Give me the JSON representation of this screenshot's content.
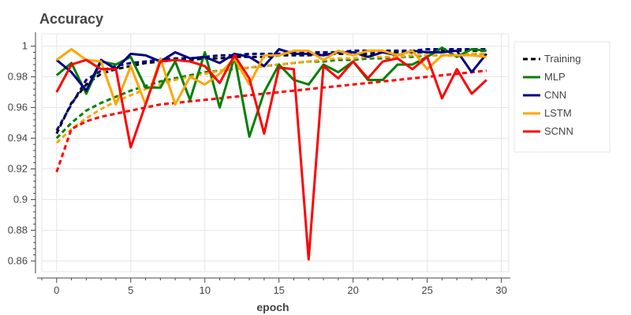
{
  "chart_data": {
    "type": "line",
    "title": "Accuracy",
    "xlabel": "epoch",
    "ylabel": "",
    "xlim": [
      -1,
      30.5
    ],
    "ylim": [
      0.853,
      1.008
    ],
    "x_ticks": [
      0,
      5,
      10,
      15,
      20,
      25,
      30
    ],
    "y_ticks": [
      0.86,
      0.88,
      0.9,
      0.92,
      0.94,
      0.96,
      0.98,
      1
    ],
    "y_tick_labels": [
      "0.86",
      "0.88",
      "0.9",
      "0.92",
      "0.94",
      "0.96",
      "0.98",
      "1"
    ],
    "grid": true,
    "legend_position": "right",
    "legend": [
      {
        "label": "Training",
        "color": "#000000",
        "dash": true
      },
      {
        "label": "MLP",
        "color": "#008000",
        "dash": false
      },
      {
        "label": "CNN",
        "color": "#000080",
        "dash": false
      },
      {
        "label": "LSTM",
        "color": "#ffa500",
        "dash": false
      },
      {
        "label": "SCNN",
        "color": "#ff0000",
        "dash": false
      }
    ],
    "x": [
      0,
      1,
      2,
      3,
      4,
      5,
      6,
      7,
      8,
      9,
      10,
      11,
      12,
      13,
      14,
      15,
      16,
      17,
      18,
      19,
      20,
      21,
      22,
      23,
      24,
      25,
      26,
      27,
      28,
      29
    ],
    "series": [
      {
        "name": "MLP",
        "style": "solid",
        "color": "#008000",
        "values": [
          0.981,
          0.989,
          0.969,
          0.99,
          0.988,
          0.993,
          0.973,
          0.973,
          0.99,
          0.965,
          0.996,
          0.96,
          0.993,
          0.941,
          0.97,
          0.988,
          0.978,
          0.975,
          0.988,
          0.983,
          0.99,
          0.978,
          0.978,
          0.988,
          0.988,
          0.993,
          0.999,
          0.993,
          0.998,
          0.997
        ]
      },
      {
        "name": "CNN",
        "style": "solid",
        "color": "#000080",
        "values": [
          0.991,
          0.983,
          0.971,
          0.991,
          0.985,
          0.995,
          0.994,
          0.99,
          0.996,
          0.992,
          0.993,
          0.989,
          0.995,
          0.993,
          0.987,
          0.998,
          0.995,
          0.995,
          0.994,
          0.996,
          0.996,
          0.993,
          0.996,
          0.994,
          0.997,
          0.996,
          0.996,
          0.997,
          0.983,
          0.995
        ]
      },
      {
        "name": "LSTM",
        "style": "solid",
        "color": "#ffa500",
        "values": [
          0.991,
          0.998,
          0.991,
          0.99,
          0.962,
          0.987,
          0.962,
          0.992,
          0.962,
          0.98,
          0.975,
          0.982,
          0.992,
          0.975,
          0.994,
          0.994,
          0.997,
          0.997,
          0.991,
          0.997,
          0.994,
          0.997,
          0.997,
          0.994,
          0.997,
          0.985,
          0.994,
          0.994,
          0.994,
          0.993
        ]
      },
      {
        "name": "SCNN",
        "style": "solid",
        "color": "#ff0000",
        "values": [
          0.97,
          0.988,
          0.991,
          0.985,
          0.985,
          0.934,
          0.962,
          0.99,
          0.991,
          0.99,
          0.987,
          0.976,
          0.994,
          0.979,
          0.943,
          0.986,
          0.985,
          0.861,
          0.987,
          0.979,
          0.99,
          0.979,
          0.99,
          0.992,
          0.985,
          0.993,
          0.966,
          0.985,
          0.969,
          0.978
        ]
      },
      {
        "name": "",
        "style": "dashed",
        "color": "#000000",
        "values": [
          0.943,
          0.963,
          0.975,
          0.982,
          0.985,
          0.987,
          0.989,
          0.99,
          0.991,
          0.991,
          0.992,
          0.992,
          0.993,
          0.993,
          0.993,
          0.994,
          0.994,
          0.994,
          0.995,
          0.995,
          0.995,
          0.995,
          0.996,
          0.996,
          0.996,
          0.996,
          0.997,
          0.997,
          0.997,
          0.997
        ]
      },
      {
        "name": "",
        "style": "dashed",
        "color": "#000080",
        "values": [
          0.945,
          0.962,
          0.978,
          0.984,
          0.987,
          0.989,
          0.99,
          0.991,
          0.992,
          0.992,
          0.993,
          0.994,
          0.994,
          0.995,
          0.995,
          0.995,
          0.996,
          0.996,
          0.996,
          0.996,
          0.997,
          0.997,
          0.997,
          0.997,
          0.997,
          0.998,
          0.998,
          0.998,
          0.998,
          0.998
        ]
      },
      {
        "name": "",
        "style": "dashed",
        "color": "#008000",
        "values": [
          0.94,
          0.95,
          0.958,
          0.963,
          0.967,
          0.971,
          0.974,
          0.977,
          0.979,
          0.981,
          0.983,
          0.984,
          0.985,
          0.986,
          0.987,
          0.988,
          0.989,
          0.99,
          0.99,
          0.991,
          0.991,
          0.992,
          0.992,
          0.993,
          0.993,
          0.994,
          0.994,
          0.994,
          0.995,
          0.995
        ]
      },
      {
        "name": "",
        "style": "dashed",
        "color": "#ffa500",
        "values": [
          0.937,
          0.946,
          0.953,
          0.959,
          0.964,
          0.968,
          0.972,
          0.975,
          0.978,
          0.98,
          0.982,
          0.984,
          0.985,
          0.986,
          0.987,
          0.988,
          0.989,
          0.99,
          0.991,
          0.992,
          0.992,
          0.993,
          0.993,
          0.993,
          0.994,
          0.994,
          0.994,
          0.994,
          0.995,
          0.995
        ]
      },
      {
        "name": "",
        "style": "dashed",
        "color": "#ff0000",
        "values": [
          0.918,
          0.946,
          0.951,
          0.954,
          0.956,
          0.958,
          0.96,
          0.962,
          0.963,
          0.964,
          0.965,
          0.966,
          0.967,
          0.968,
          0.969,
          0.97,
          0.971,
          0.972,
          0.973,
          0.974,
          0.975,
          0.976,
          0.977,
          0.978,
          0.979,
          0.98,
          0.981,
          0.982,
          0.983,
          0.984
        ]
      }
    ]
  }
}
